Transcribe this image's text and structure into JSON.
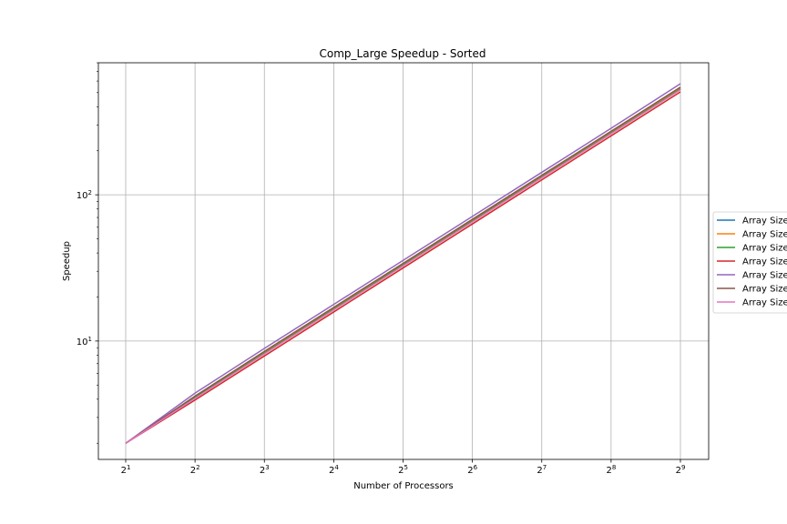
{
  "chart_data": {
    "type": "line",
    "title": "Comp_Large Speedup - Sorted",
    "xlabel": "Number of Processors",
    "ylabel": "Speedup",
    "x": [
      2,
      4,
      8,
      16,
      32,
      64,
      128,
      256,
      512
    ],
    "x_ticks": [
      {
        "base": "2",
        "exp": "1"
      },
      {
        "base": "2",
        "exp": "2"
      },
      {
        "base": "2",
        "exp": "3"
      },
      {
        "base": "2",
        "exp": "4"
      },
      {
        "base": "2",
        "exp": "5"
      },
      {
        "base": "2",
        "exp": "6"
      },
      {
        "base": "2",
        "exp": "7"
      },
      {
        "base": "2",
        "exp": "8"
      },
      {
        "base": "2",
        "exp": "9"
      }
    ],
    "y_ticks": [
      {
        "base": "10",
        "exp": "1",
        "value": 10
      },
      {
        "base": "10",
        "exp": "2",
        "value": 100
      }
    ],
    "xscale": "log2",
    "yscale": "log10",
    "ylim": [
      1.55,
      800
    ],
    "grid": true,
    "legend_position": "right-outside",
    "series": [
      {
        "name": "Array Size",
        "color": "#1f77b4",
        "values": [
          2,
          4.1,
          8.3,
          16.6,
          33.2,
          66.5,
          133,
          266,
          532
        ]
      },
      {
        "name": "Array Size",
        "color": "#ff7f0e",
        "values": [
          2,
          4.15,
          8.4,
          16.9,
          33.8,
          67.5,
          135,
          270,
          540
        ]
      },
      {
        "name": "Array Size",
        "color": "#2ca02c",
        "values": [
          2,
          4.1,
          8.25,
          16.5,
          33,
          66,
          132,
          264,
          528
        ]
      },
      {
        "name": "Array Size",
        "color": "#d62728",
        "values": [
          2,
          3.95,
          7.9,
          15.8,
          31.6,
          63.2,
          126.5,
          253,
          506
        ]
      },
      {
        "name": "Array Size",
        "color": "#9467bd",
        "values": [
          2,
          4.4,
          8.9,
          17.8,
          35.6,
          71.2,
          142.5,
          285,
          575
        ]
      },
      {
        "name": "Array Size",
        "color": "#8c564b",
        "values": [
          2,
          4.2,
          8.5,
          17,
          34,
          68,
          136,
          272,
          545
        ]
      },
      {
        "name": "Array Size",
        "color": "#e377c2",
        "values": [
          2,
          4.05,
          8.15,
          16.3,
          32.6,
          65.2,
          130.5,
          261,
          522
        ]
      }
    ]
  }
}
